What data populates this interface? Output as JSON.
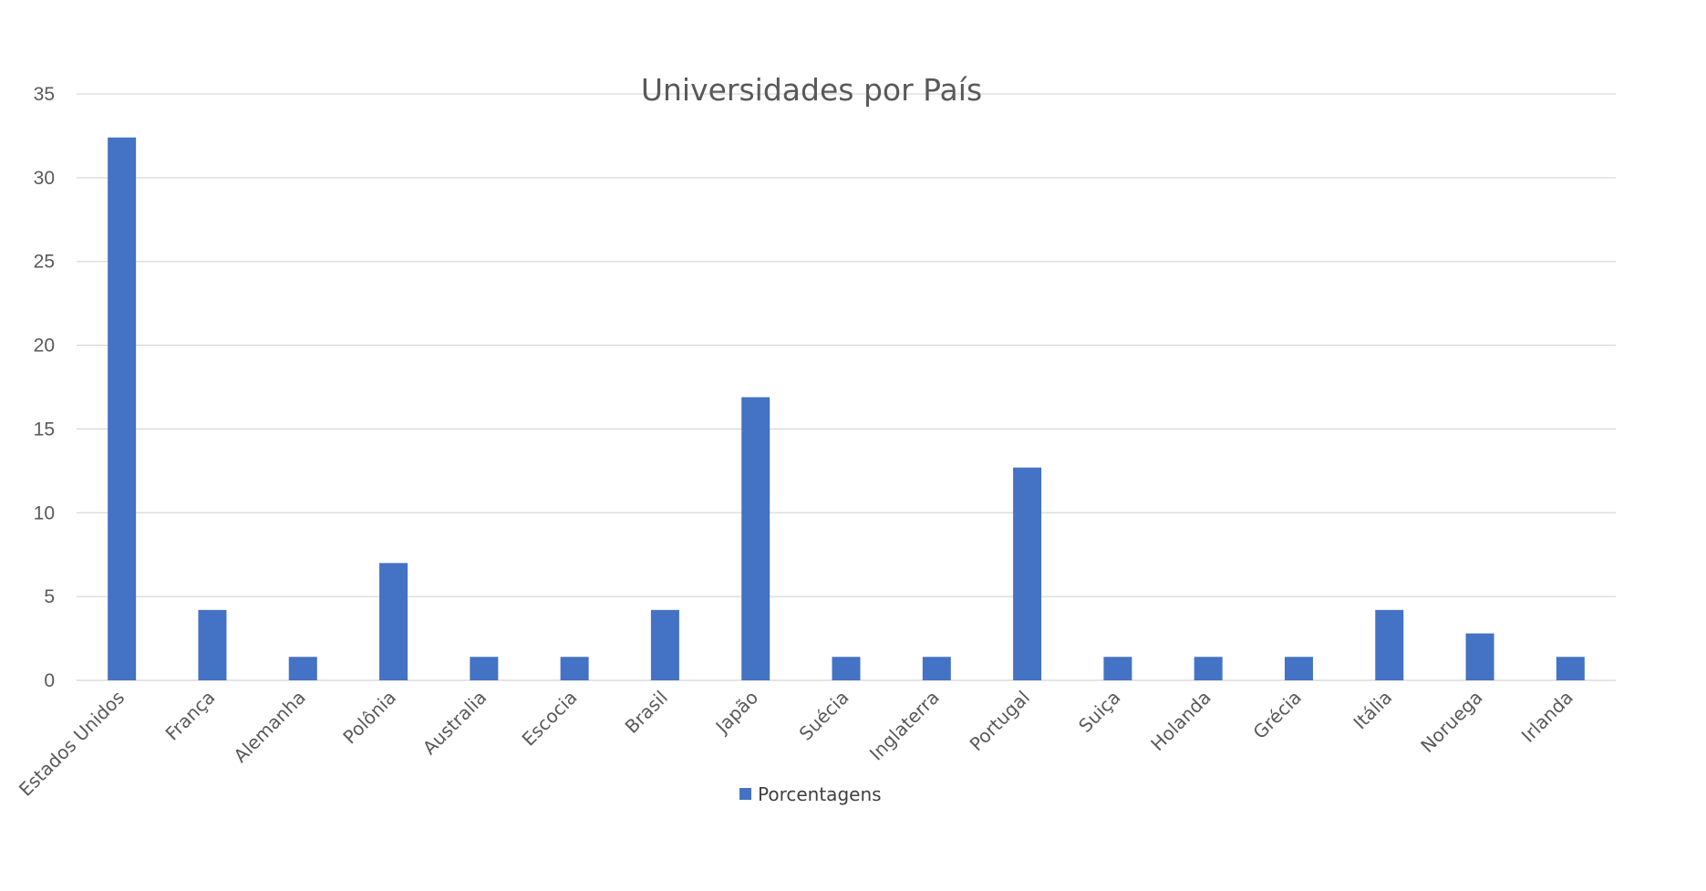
{
  "chart_data": {
    "type": "bar",
    "title": "Universidades por País",
    "xlabel": "",
    "ylabel": "",
    "ylim": [
      0,
      35
    ],
    "yticks": [
      0,
      5,
      10,
      15,
      20,
      25,
      30,
      35
    ],
    "grid": true,
    "legend_position": "bottom",
    "categories": [
      "Estados Unidos",
      "França",
      "Alemanha",
      "Polônia",
      "Australia",
      "Escocia",
      "Brasil",
      "Japão",
      "Suécia",
      "Inglaterra",
      "Portugal",
      "Suiça",
      "Holanda",
      "Grécia",
      "Itália",
      "Noruega",
      "Irlanda"
    ],
    "series": [
      {
        "name": "Porcentagens",
        "color": "#4472C4",
        "values": [
          32.4,
          4.2,
          1.4,
          7.0,
          1.4,
          1.4,
          4.2,
          16.9,
          1.4,
          1.4,
          12.7,
          1.4,
          1.4,
          1.4,
          4.2,
          2.8,
          1.4
        ]
      }
    ]
  }
}
